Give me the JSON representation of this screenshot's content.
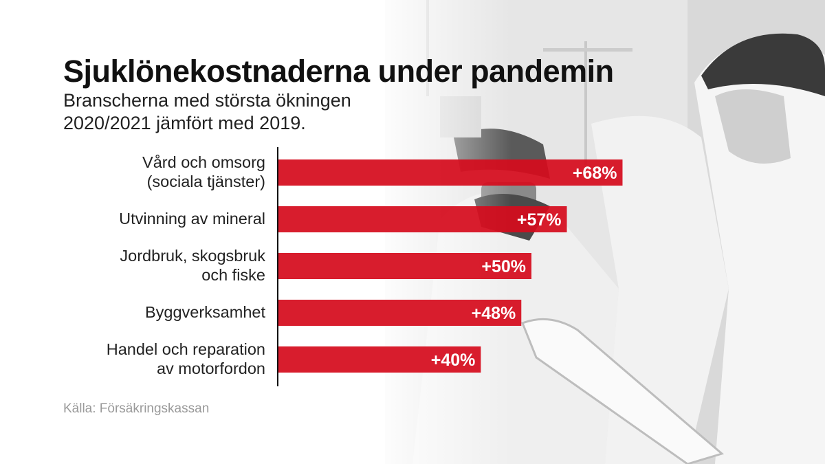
{
  "title": "Sjuklönekostnaderna under pandemin",
  "subtitle_lines": [
    "Branscherna med största ökningen",
    "2020/2021 jämfört med 2019."
  ],
  "source": "Källa: Försäkringskassan",
  "colors": {
    "bar": "#d50c1d",
    "label_text": "#ffffff",
    "axis": "#111111"
  },
  "chart_data": {
    "type": "bar",
    "orientation": "horizontal",
    "categories": [
      [
        "Vård och omsorg",
        "(sociala tjänster)"
      ],
      [
        "Utvinning av mineral"
      ],
      [
        "Jordbruk, skogsbruk",
        "och fiske"
      ],
      [
        "Byggverksamhet"
      ],
      [
        "Handel och reparation",
        "av motorfordon"
      ]
    ],
    "values": [
      68,
      57,
      50,
      48,
      40
    ],
    "data_labels": [
      "+68%",
      "+57%",
      "+50%",
      "+48%",
      "+40%"
    ],
    "unit": "%",
    "xlim": [
      0,
      70
    ],
    "grid": false,
    "legend": "none"
  }
}
